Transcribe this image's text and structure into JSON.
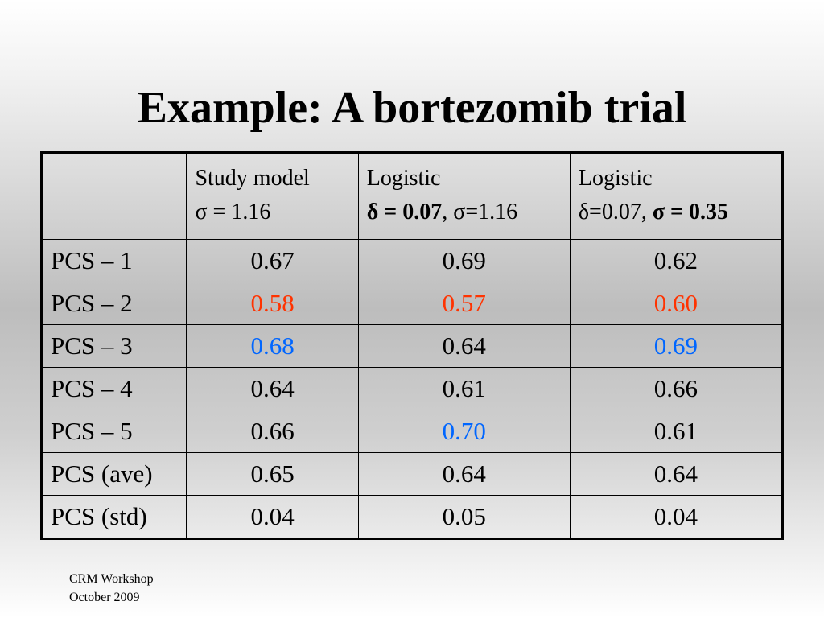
{
  "title": "Example: A bortezomib trial",
  "table": {
    "header": {
      "corner": "",
      "col1": {
        "line1": "Study model",
        "line2": "σ = 1.16"
      },
      "col2": {
        "line1": "Logistic",
        "line2_bold": "δ = 0.07",
        "line2_rest": ", σ=1.16"
      },
      "col3": {
        "line1": "Logistic",
        "line2_plain": "δ=0.07, ",
        "line2_bold": "σ = 0.35"
      }
    },
    "rows": [
      {
        "label": "PCS – 1",
        "values": [
          "0.67",
          "0.69",
          "0.62"
        ],
        "highlights": [
          "none",
          "none",
          "none"
        ]
      },
      {
        "label": "PCS – 2",
        "values": [
          "0.58",
          "0.57",
          "0.60"
        ],
        "highlights": [
          "red",
          "red",
          "red"
        ]
      },
      {
        "label": "PCS – 3",
        "values": [
          "0.68",
          "0.64",
          "0.69"
        ],
        "highlights": [
          "blue",
          "none",
          "blue"
        ]
      },
      {
        "label": "PCS – 4",
        "values": [
          "0.64",
          "0.61",
          "0.66"
        ],
        "highlights": [
          "none",
          "none",
          "none"
        ]
      },
      {
        "label": "PCS – 5",
        "values": [
          "0.66",
          "0.70",
          "0.61"
        ],
        "highlights": [
          "none",
          "blue",
          "none"
        ]
      },
      {
        "label": "PCS (ave)",
        "values": [
          "0.65",
          "0.64",
          "0.64"
        ],
        "highlights": [
          "none",
          "none",
          "none"
        ]
      },
      {
        "label": "PCS (std)",
        "values": [
          "0.04",
          "0.05",
          "0.04"
        ],
        "highlights": [
          "none",
          "none",
          "none"
        ]
      }
    ]
  },
  "footer": {
    "line1": "CRM Workshop",
    "line2": "October 2009"
  },
  "colors": {
    "red": "#ff3300",
    "blue": "#0066ff"
  }
}
